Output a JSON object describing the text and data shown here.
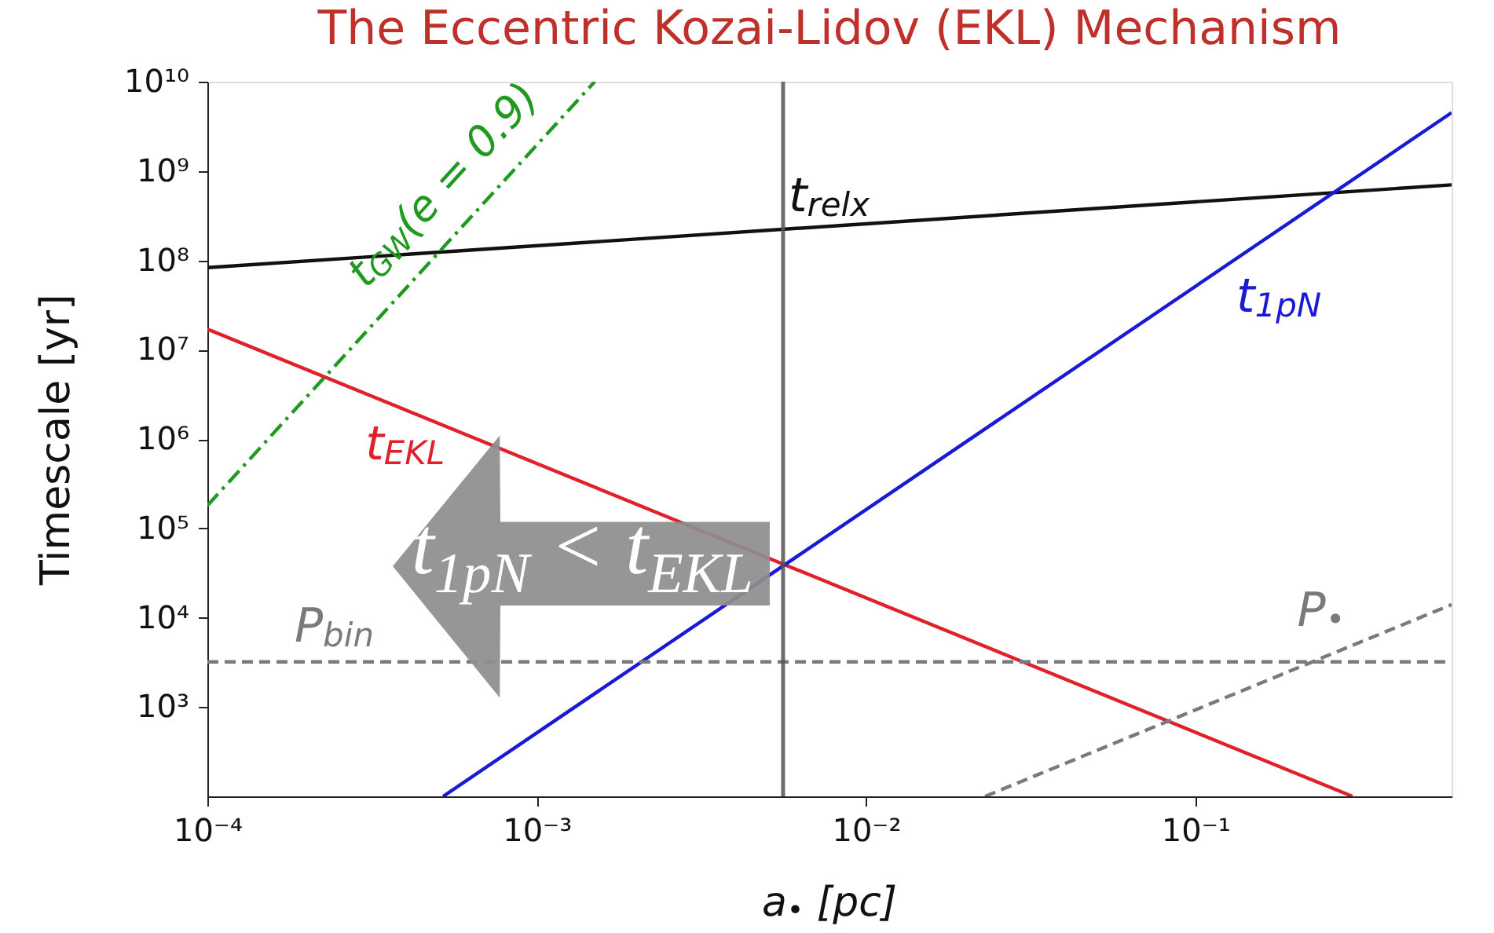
{
  "chart_data": {
    "type": "line",
    "title": "The Eccentric Kozai-Lidov (EKL) Mechanism",
    "xlabel": "a$_{•}$ [pc]",
    "ylabel": "Timescale [yr]",
    "log": "xy",
    "xlim": [
      0.0001,
      0.6
    ],
    "ylim": [
      100,
      10000000000
    ],
    "xticks": [
      {
        "value": 0.0001,
        "label": "10⁻⁴"
      },
      {
        "value": 0.001,
        "label": "10⁻³"
      },
      {
        "value": 0.01,
        "label": "10⁻²"
      },
      {
        "value": 0.1,
        "label": "10⁻¹"
      }
    ],
    "yticks": [
      {
        "value": 1000,
        "label": "10³"
      },
      {
        "value": 10000,
        "label": "10⁴"
      },
      {
        "value": 100000,
        "label": "10⁵"
      },
      {
        "value": 1000000,
        "label": "10⁶"
      },
      {
        "value": 10000000,
        "label": "10⁷"
      },
      {
        "value": 100000000,
        "label": "10⁸"
      },
      {
        "value": 1000000000,
        "label": "10⁹"
      },
      {
        "value": 10000000000,
        "label": "10¹⁰"
      }
    ],
    "series": [
      {
        "name": "t$_{relx}$",
        "color": "#111111",
        "x": [
          0.0001,
          0.6
        ],
        "values": [
          83000000,
          700000000
        ]
      },
      {
        "name": "t$_{EKL}$",
        "color": "#e0202a",
        "x": [
          0.0001,
          0.3
        ],
        "values": [
          17000000,
          100
        ]
      },
      {
        "name": "t$_{1pN}$",
        "color": "#1a1ad6",
        "x": [
          0.00052,
          0.6
        ],
        "values": [
          100,
          4500000000
        ]
      },
      {
        "name": "t$_{GW}$(e = 0.9)",
        "color": "#1f9a1f",
        "line_style": "dashdot",
        "x": [
          0.0001,
          0.0015
        ],
        "values": [
          180000,
          10000000000
        ]
      },
      {
        "name": "P$_{bin}$",
        "color": "#7a7a7a",
        "line_style": "dashed",
        "x": [
          0.0001,
          0.6
        ],
        "values": [
          3200,
          3200
        ]
      },
      {
        "name": "P$_{•}$",
        "color": "#7a7a7a",
        "line_style": "dashed",
        "x": [
          0.023,
          0.6
        ],
        "values": [
          100,
          14000
        ]
      }
    ],
    "ref_lines": [
      {
        "axis": "x",
        "value": 0.0056,
        "color": "#555555"
      }
    ],
    "annotations": [
      "t$_{1pN}$ < t$_{EKL}$"
    ]
  }
}
